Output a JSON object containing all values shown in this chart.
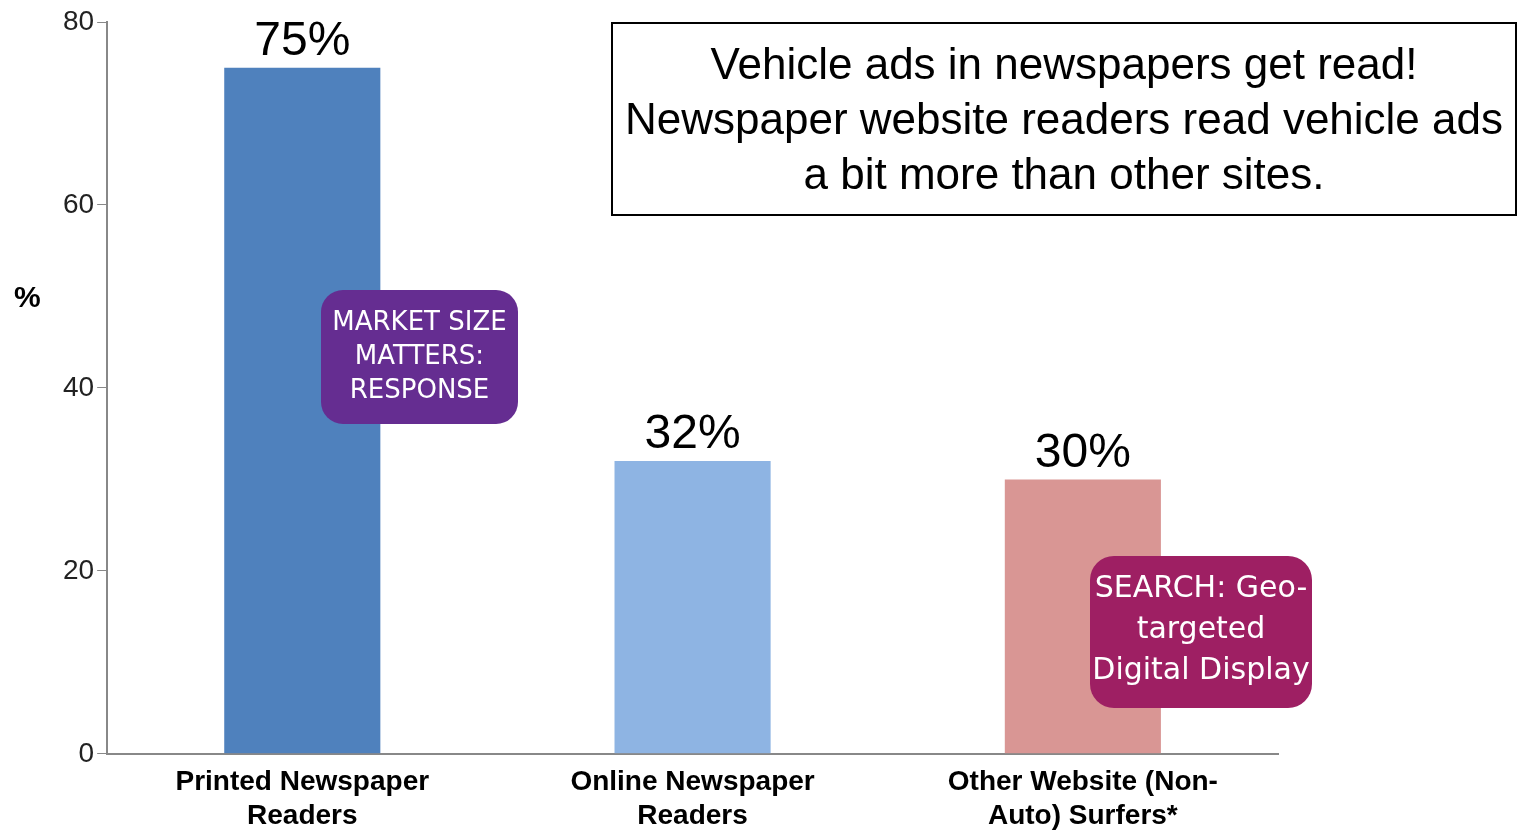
{
  "chart_data": {
    "type": "bar",
    "ylabel": "%",
    "categories": [
      "Printed Newspaper Readers",
      "Online Newspaper Readers",
      "Other Website (Non-Auto) Surfers*"
    ],
    "values": [
      75,
      32,
      30
    ],
    "colors": [
      "#4f81bd",
      "#8eb4e3",
      "#d99694"
    ],
    "value_labels": [
      "75%",
      "32%",
      "30%"
    ],
    "ylim": [
      0,
      80
    ],
    "yticks": [
      0,
      20,
      40,
      60,
      80
    ],
    "grid": false,
    "legend": false,
    "annotations": [
      "Vehicle ads in newspapers get read! Newspaper website readers read vehicle ads a bit more than other sites.",
      "MARKET SIZE MATTERS: RESPONSE",
      "SEARCH: Geo-targeted Digital Display"
    ]
  }
}
